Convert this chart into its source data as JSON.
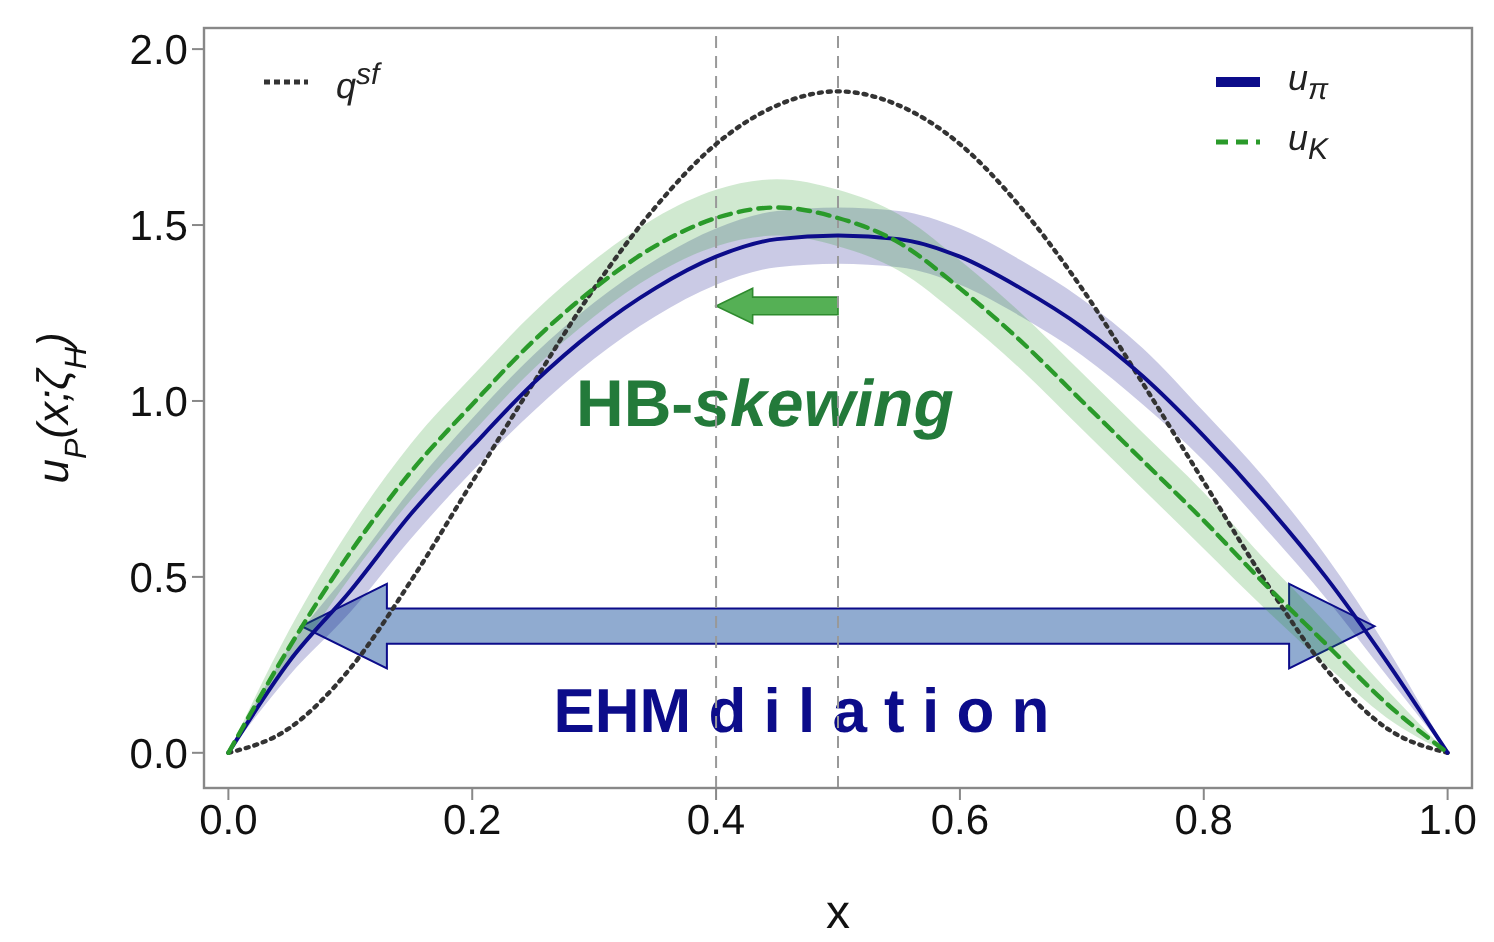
{
  "chart_data": {
    "type": "line",
    "xlabel": "x",
    "ylabel": "u$_{P}$(x;ζ$_{H}$)",
    "x": [
      0,
      0.05,
      0.1,
      0.15,
      0.2,
      0.25,
      0.3,
      0.35,
      0.4,
      0.45,
      0.5,
      0.55,
      0.6,
      0.65,
      0.7,
      0.75,
      0.8,
      0.85,
      0.9,
      0.95,
      1
    ],
    "series": [
      {
        "name": "q$^{sf}$",
        "color": "#333333",
        "line_style": "dotted",
        "values": [
          0,
          0.07,
          0.24,
          0.49,
          0.77,
          1.05,
          1.32,
          1.55,
          1.73,
          1.84,
          1.88,
          1.84,
          1.73,
          1.55,
          1.32,
          1.05,
          0.77,
          0.49,
          0.24,
          0.07,
          0
        ]
      },
      {
        "name": "u$_{π}$",
        "color": "#0c0c8a",
        "line_style": "solid",
        "values": [
          0,
          0.26,
          0.46,
          0.68,
          0.87,
          1.05,
          1.2,
          1.32,
          1.41,
          1.46,
          1.47,
          1.46,
          1.41,
          1.32,
          1.21,
          1.07,
          0.9,
          0.71,
          0.5,
          0.26,
          0
        ],
        "lower": [
          0,
          0.22,
          0.4,
          0.61,
          0.8,
          0.97,
          1.12,
          1.24,
          1.33,
          1.38,
          1.39,
          1.38,
          1.33,
          1.24,
          1.13,
          0.99,
          0.83,
          0.64,
          0.44,
          0.22,
          0
        ],
        "upper": [
          0,
          0.3,
          0.52,
          0.75,
          0.95,
          1.13,
          1.28,
          1.4,
          1.49,
          1.54,
          1.55,
          1.54,
          1.49,
          1.4,
          1.29,
          1.15,
          0.97,
          0.78,
          0.56,
          0.3,
          0
        ]
      },
      {
        "name": "u$_{K}$",
        "color": "#2a9a2a",
        "line_style": "dashed",
        "values": [
          0,
          0.3,
          0.57,
          0.8,
          0.99,
          1.17,
          1.32,
          1.44,
          1.52,
          1.55,
          1.52,
          1.45,
          1.32,
          1.17,
          1,
          0.83,
          0.66,
          0.48,
          0.31,
          0.14,
          0
        ],
        "lower": [
          0,
          0.25,
          0.5,
          0.72,
          0.91,
          1.09,
          1.24,
          1.36,
          1.44,
          1.47,
          1.44,
          1.37,
          1.24,
          1.09,
          0.92,
          0.75,
          0.58,
          0.41,
          0.25,
          0.1,
          0
        ],
        "upper": [
          0,
          0.35,
          0.64,
          0.88,
          1.07,
          1.25,
          1.4,
          1.52,
          1.6,
          1.63,
          1.6,
          1.53,
          1.4,
          1.25,
          1.08,
          0.91,
          0.74,
          0.55,
          0.37,
          0.18,
          0
        ]
      }
    ],
    "xlim": [
      -0.02,
      1.02
    ],
    "ylim": [
      -0.1,
      2.06
    ],
    "xticks": [
      {
        "value": 0,
        "label": "0.0"
      },
      0.2,
      0.4,
      0.6,
      0.8,
      {
        "value": 1,
        "label": "1.0"
      }
    ],
    "yticks": [
      {
        "value": 0,
        "label": "0.0"
      },
      0.5,
      {
        "value": 1,
        "label": "1.0"
      },
      1.5,
      {
        "value": 2,
        "label": "2.0"
      }
    ],
    "ref_lines": [
      {
        "axis": "x",
        "value": 0.4,
        "color": "#999999",
        "line_style": "dashed"
      },
      {
        "axis": "x",
        "value": 0.5,
        "color": "#999999",
        "line_style": "dashed"
      }
    ],
    "annotations": [
      "HB-skewing",
      "EHM d i l a t i o n"
    ],
    "grid": false,
    "legend": "top",
    "marker": "none"
  }
}
